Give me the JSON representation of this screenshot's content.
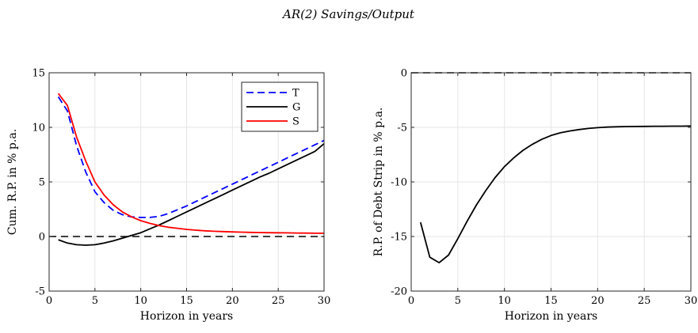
{
  "figure_title": "AR(2) Savings/Output",
  "chart_data": [
    {
      "type": "line",
      "xlabel": "Horizon in years",
      "ylabel": "Cum. R.P. in % p.a.",
      "xlim": [
        0,
        30
      ],
      "ylim": [
        -5,
        15
      ],
      "xticks": [
        0,
        5,
        10,
        15,
        20,
        25,
        30
      ],
      "yticks": [
        -5,
        0,
        5,
        10,
        15
      ],
      "grid": true,
      "legend": "top-right",
      "zero_line": {
        "y": 0,
        "style": "dashed",
        "color": "#000000"
      },
      "series": [
        {
          "name": "T",
          "color": "#0000ff",
          "style": "dashed",
          "x": [
            1,
            2,
            3,
            4,
            5,
            6,
            7,
            8,
            9,
            10,
            11,
            12,
            13,
            14,
            15,
            16,
            17,
            18,
            19,
            20,
            21,
            22,
            23,
            24,
            25,
            26,
            27,
            28,
            29,
            30
          ],
          "y": [
            12.8,
            11.5,
            8.3,
            5.9,
            4.1,
            3.1,
            2.4,
            2.0,
            1.8,
            1.75,
            1.75,
            1.85,
            2.1,
            2.45,
            2.8,
            3.2,
            3.6,
            4.0,
            4.4,
            4.8,
            5.2,
            5.6,
            6.0,
            6.4,
            6.8,
            7.2,
            7.6,
            8.0,
            8.4,
            8.8
          ]
        },
        {
          "name": "G",
          "color": "#000000",
          "style": "solid",
          "x": [
            1,
            2,
            3,
            4,
            5,
            6,
            7,
            8,
            9,
            10,
            11,
            12,
            13,
            14,
            15,
            16,
            17,
            18,
            19,
            20,
            21,
            22,
            23,
            24,
            25,
            26,
            27,
            28,
            29,
            30
          ],
          "y": [
            -0.3,
            -0.6,
            -0.75,
            -0.8,
            -0.75,
            -0.6,
            -0.4,
            -0.15,
            0.1,
            0.35,
            0.7,
            1.05,
            1.45,
            1.85,
            2.25,
            2.65,
            3.05,
            3.45,
            3.85,
            4.25,
            4.65,
            5.05,
            5.45,
            5.8,
            6.2,
            6.6,
            7.0,
            7.4,
            7.8,
            8.5
          ]
        },
        {
          "name": "S",
          "color": "#ff0000",
          "style": "solid",
          "x": [
            1,
            2,
            3,
            4,
            5,
            6,
            7,
            8,
            9,
            10,
            11,
            12,
            13,
            14,
            15,
            16,
            17,
            18,
            19,
            20,
            21,
            22,
            23,
            24,
            25,
            26,
            27,
            28,
            29,
            30
          ],
          "y": [
            13.1,
            12.0,
            9.1,
            6.9,
            5.0,
            3.8,
            2.9,
            2.25,
            1.8,
            1.45,
            1.2,
            1.0,
            0.85,
            0.75,
            0.65,
            0.58,
            0.52,
            0.48,
            0.45,
            0.42,
            0.4,
            0.38,
            0.36,
            0.35,
            0.34,
            0.33,
            0.32,
            0.31,
            0.3,
            0.3
          ]
        }
      ]
    },
    {
      "type": "line",
      "xlabel": "Horizon in years",
      "ylabel": "R.P. of Debt Strip in % p.a.",
      "xlim": [
        0,
        30
      ],
      "ylim": [
        -20,
        0
      ],
      "xticks": [
        0,
        5,
        10,
        15,
        20,
        25,
        30
      ],
      "yticks": [
        -20,
        -15,
        -10,
        -5,
        0
      ],
      "grid": true,
      "zero_line": {
        "y": 0,
        "style": "dashed",
        "color": "#000000"
      },
      "series": [
        {
          "color": "#000000",
          "style": "solid",
          "x": [
            1,
            2,
            3,
            4,
            5,
            6,
            7,
            8,
            9,
            10,
            11,
            12,
            13,
            14,
            15,
            16,
            17,
            18,
            19,
            20,
            21,
            22,
            23,
            24,
            25,
            26,
            27,
            28,
            29,
            30
          ],
          "y": [
            -13.7,
            -16.9,
            -17.4,
            -16.7,
            -15.2,
            -13.6,
            -12.1,
            -10.8,
            -9.6,
            -8.6,
            -7.8,
            -7.1,
            -6.55,
            -6.1,
            -5.75,
            -5.5,
            -5.33,
            -5.2,
            -5.1,
            -5.03,
            -4.98,
            -4.95,
            -4.93,
            -4.92,
            -4.91,
            -4.9,
            -4.9,
            -4.89,
            -4.89,
            -4.88
          ]
        }
      ]
    }
  ]
}
